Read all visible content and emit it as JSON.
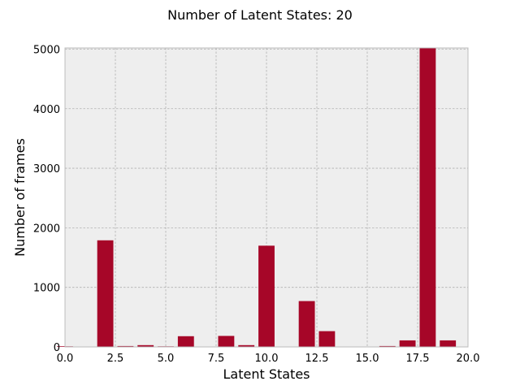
{
  "chart_data": {
    "type": "bar",
    "title": "Number of Latent States: 20",
    "xlabel": "Latent States",
    "ylabel": "Number of frames",
    "xlim": [
      0,
      20
    ],
    "ylim": [
      0,
      5020
    ],
    "xticks": [
      0,
      2.5,
      5,
      7.5,
      10,
      12.5,
      15,
      17.5,
      20
    ],
    "xtick_labels": [
      "0.0",
      "2.5",
      "5.0",
      "7.5",
      "10.0",
      "12.5",
      "15.0",
      "17.5",
      "20.0"
    ],
    "yticks": [
      0,
      1000,
      2000,
      3000,
      4000,
      5000
    ],
    "ytick_labels": [
      "0",
      "1000",
      "2000",
      "3000",
      "4000",
      "5000"
    ],
    "bar_width": 0.8,
    "grid": true,
    "colors": {
      "bar": "#A60628",
      "background": "#EEEEEE",
      "grid": "#B0B0B0",
      "frame": "#BCBCBC"
    },
    "x": [
      0,
      1,
      2,
      3,
      4,
      5,
      6,
      7,
      8,
      9,
      10,
      11,
      12,
      13,
      14,
      15,
      16,
      17,
      18,
      19
    ],
    "values": [
      10,
      0,
      1790,
      15,
      30,
      10,
      180,
      0,
      185,
      30,
      1700,
      0,
      770,
      265,
      0,
      0,
      15,
      110,
      5020,
      110
    ]
  }
}
